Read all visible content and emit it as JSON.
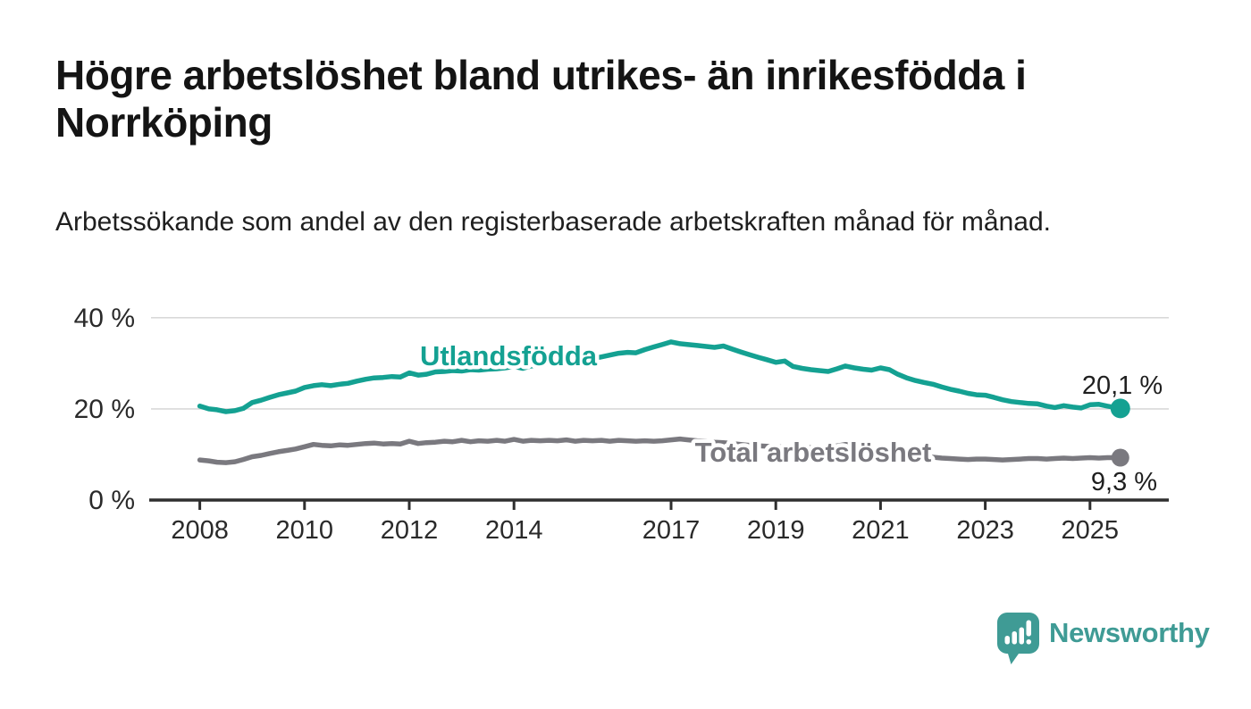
{
  "branding": {
    "logo_text": "Newsworthy",
    "logo_color": "#3f9b95"
  },
  "chart_data": {
    "type": "line",
    "title": "Högre arbetslöshet bland utrikes- än inrikesfödda i Norrköping",
    "subtitle": "Arbetssökande som andel av den registerbaserade arbetskraften månad för månad.",
    "grid": "horizontal-only",
    "legend_position": "inline-labels",
    "x_axis": {
      "range": [
        2007.1,
        2026.5
      ],
      "ticks": [
        2008,
        2010,
        2012,
        2014,
        2017,
        2019,
        2021,
        2023,
        2025
      ]
    },
    "y_axis": {
      "range": [
        0,
        41
      ],
      "ticks": [
        {
          "value": 40,
          "label": "40 %"
        },
        {
          "value": 20,
          "label": "20 %"
        },
        {
          "value": 0,
          "label": "0 %"
        }
      ]
    },
    "series": [
      {
        "id": "utlandsfodda",
        "name": "Utlandsfödda",
        "color": "#14a192",
        "end_label": "20,1 %",
        "end_value": 20.1,
        "points": [
          [
            2008.0,
            20.6
          ],
          [
            2008.17,
            20.0
          ],
          [
            2008.33,
            19.8
          ],
          [
            2008.5,
            19.4
          ],
          [
            2008.67,
            19.6
          ],
          [
            2008.83,
            20.1
          ],
          [
            2009.0,
            21.4
          ],
          [
            2009.17,
            21.9
          ],
          [
            2009.33,
            22.5
          ],
          [
            2009.5,
            23.1
          ],
          [
            2009.67,
            23.5
          ],
          [
            2009.83,
            23.9
          ],
          [
            2010.0,
            24.7
          ],
          [
            2010.17,
            25.1
          ],
          [
            2010.33,
            25.3
          ],
          [
            2010.5,
            25.1
          ],
          [
            2010.67,
            25.4
          ],
          [
            2010.83,
            25.6
          ],
          [
            2011.0,
            26.1
          ],
          [
            2011.17,
            26.5
          ],
          [
            2011.33,
            26.8
          ],
          [
            2011.5,
            26.9
          ],
          [
            2011.67,
            27.1
          ],
          [
            2011.83,
            27.0
          ],
          [
            2012.0,
            27.9
          ],
          [
            2012.17,
            27.4
          ],
          [
            2012.33,
            27.6
          ],
          [
            2012.5,
            28.1
          ],
          [
            2012.67,
            28.2
          ],
          [
            2012.83,
            28.4
          ],
          [
            2013.0,
            28.3
          ],
          [
            2013.17,
            28.6
          ],
          [
            2013.33,
            28.5
          ],
          [
            2013.5,
            28.7
          ],
          [
            2013.67,
            28.8
          ],
          [
            2013.83,
            29.0
          ],
          [
            2014.0,
            29.3
          ],
          [
            2014.17,
            28.9
          ],
          [
            2014.33,
            29.4
          ],
          [
            2014.5,
            29.7
          ],
          [
            2014.67,
            29.9
          ],
          [
            2014.83,
            30.1
          ],
          [
            2015.0,
            30.5
          ],
          [
            2015.17,
            30.2
          ],
          [
            2015.33,
            30.6
          ],
          [
            2015.5,
            31.0
          ],
          [
            2015.67,
            31.4
          ],
          [
            2015.83,
            31.8
          ],
          [
            2016.0,
            32.2
          ],
          [
            2016.17,
            32.4
          ],
          [
            2016.33,
            32.3
          ],
          [
            2016.5,
            33.0
          ],
          [
            2016.67,
            33.6
          ],
          [
            2016.83,
            34.1
          ],
          [
            2017.0,
            34.7
          ],
          [
            2017.17,
            34.3
          ],
          [
            2017.33,
            34.1
          ],
          [
            2017.5,
            33.9
          ],
          [
            2017.67,
            33.7
          ],
          [
            2017.83,
            33.5
          ],
          [
            2018.0,
            33.8
          ],
          [
            2018.17,
            33.1
          ],
          [
            2018.33,
            32.5
          ],
          [
            2018.5,
            31.9
          ],
          [
            2018.67,
            31.3
          ],
          [
            2018.83,
            30.8
          ],
          [
            2019.0,
            30.2
          ],
          [
            2019.17,
            30.5
          ],
          [
            2019.33,
            29.3
          ],
          [
            2019.5,
            28.9
          ],
          [
            2019.67,
            28.6
          ],
          [
            2019.83,
            28.4
          ],
          [
            2020.0,
            28.2
          ],
          [
            2020.17,
            28.8
          ],
          [
            2020.33,
            29.4
          ],
          [
            2020.5,
            29.0
          ],
          [
            2020.67,
            28.7
          ],
          [
            2020.83,
            28.5
          ],
          [
            2021.0,
            29.0
          ],
          [
            2021.17,
            28.6
          ],
          [
            2021.33,
            27.6
          ],
          [
            2021.5,
            26.8
          ],
          [
            2021.67,
            26.2
          ],
          [
            2021.83,
            25.8
          ],
          [
            2022.0,
            25.4
          ],
          [
            2022.17,
            24.8
          ],
          [
            2022.33,
            24.3
          ],
          [
            2022.5,
            23.9
          ],
          [
            2022.67,
            23.4
          ],
          [
            2022.83,
            23.1
          ],
          [
            2023.0,
            23.0
          ],
          [
            2023.17,
            22.5
          ],
          [
            2023.33,
            22.0
          ],
          [
            2023.5,
            21.6
          ],
          [
            2023.67,
            21.4
          ],
          [
            2023.83,
            21.2
          ],
          [
            2024.0,
            21.1
          ],
          [
            2024.17,
            20.6
          ],
          [
            2024.33,
            20.3
          ],
          [
            2024.5,
            20.7
          ],
          [
            2024.67,
            20.4
          ],
          [
            2024.83,
            20.2
          ],
          [
            2025.0,
            20.9
          ],
          [
            2025.17,
            21.0
          ],
          [
            2025.33,
            20.6
          ],
          [
            2025.58,
            20.1
          ]
        ]
      },
      {
        "id": "total",
        "name": "Total arbetslöshet",
        "color": "#7a797f",
        "end_label": "9,3 %",
        "end_value": 9.3,
        "points": [
          [
            2008.0,
            8.8
          ],
          [
            2008.17,
            8.6
          ],
          [
            2008.33,
            8.3
          ],
          [
            2008.5,
            8.2
          ],
          [
            2008.67,
            8.4
          ],
          [
            2008.83,
            8.9
          ],
          [
            2009.0,
            9.5
          ],
          [
            2009.17,
            9.8
          ],
          [
            2009.33,
            10.2
          ],
          [
            2009.5,
            10.6
          ],
          [
            2009.67,
            10.9
          ],
          [
            2009.83,
            11.2
          ],
          [
            2010.0,
            11.7
          ],
          [
            2010.17,
            12.2
          ],
          [
            2010.33,
            12.0
          ],
          [
            2010.5,
            11.9
          ],
          [
            2010.67,
            12.1
          ],
          [
            2010.83,
            12.0
          ],
          [
            2011.0,
            12.2
          ],
          [
            2011.17,
            12.4
          ],
          [
            2011.33,
            12.5
          ],
          [
            2011.5,
            12.3
          ],
          [
            2011.67,
            12.4
          ],
          [
            2011.83,
            12.3
          ],
          [
            2012.0,
            12.9
          ],
          [
            2012.17,
            12.4
          ],
          [
            2012.33,
            12.6
          ],
          [
            2012.5,
            12.7
          ],
          [
            2012.67,
            12.9
          ],
          [
            2012.83,
            12.8
          ],
          [
            2013.0,
            13.1
          ],
          [
            2013.17,
            12.8
          ],
          [
            2013.33,
            13.0
          ],
          [
            2013.5,
            12.9
          ],
          [
            2013.67,
            13.1
          ],
          [
            2013.83,
            12.9
          ],
          [
            2014.0,
            13.3
          ],
          [
            2014.17,
            12.9
          ],
          [
            2014.33,
            13.1
          ],
          [
            2014.5,
            13.0
          ],
          [
            2014.67,
            13.1
          ],
          [
            2014.83,
            13.0
          ],
          [
            2015.0,
            13.2
          ],
          [
            2015.17,
            12.9
          ],
          [
            2015.33,
            13.1
          ],
          [
            2015.5,
            13.0
          ],
          [
            2015.67,
            13.1
          ],
          [
            2015.83,
            12.9
          ],
          [
            2016.0,
            13.1
          ],
          [
            2016.17,
            13.0
          ],
          [
            2016.33,
            12.9
          ],
          [
            2016.5,
            13.0
          ],
          [
            2016.67,
            12.9
          ],
          [
            2016.83,
            13.0
          ],
          [
            2017.0,
            13.2
          ],
          [
            2017.17,
            13.4
          ],
          [
            2017.33,
            13.2
          ],
          [
            2017.5,
            13.0
          ],
          [
            2017.67,
            12.9
          ],
          [
            2017.83,
            12.7
          ],
          [
            2018.0,
            12.6
          ],
          [
            2018.17,
            12.4
          ],
          [
            2018.33,
            12.2
          ],
          [
            2018.5,
            12.0
          ],
          [
            2018.67,
            11.9
          ],
          [
            2018.83,
            11.8
          ],
          [
            2019.0,
            11.7
          ],
          [
            2019.17,
            11.6
          ],
          [
            2019.33,
            11.4
          ],
          [
            2019.5,
            11.4
          ],
          [
            2019.67,
            11.5
          ],
          [
            2019.83,
            11.4
          ],
          [
            2020.0,
            11.5
          ],
          [
            2020.17,
            11.9
          ],
          [
            2020.33,
            12.2
          ],
          [
            2020.5,
            12.0
          ],
          [
            2020.67,
            11.7
          ],
          [
            2020.83,
            11.4
          ],
          [
            2021.0,
            11.1
          ],
          [
            2021.17,
            10.7
          ],
          [
            2021.33,
            10.4
          ],
          [
            2021.5,
            10.1
          ],
          [
            2021.67,
            9.8
          ],
          [
            2021.83,
            9.6
          ],
          [
            2022.0,
            9.4
          ],
          [
            2022.17,
            9.2
          ],
          [
            2022.33,
            9.1
          ],
          [
            2022.5,
            9.0
          ],
          [
            2022.67,
            8.9
          ],
          [
            2022.83,
            9.0
          ],
          [
            2023.0,
            9.0
          ],
          [
            2023.17,
            8.9
          ],
          [
            2023.33,
            8.8
          ],
          [
            2023.5,
            8.9
          ],
          [
            2023.67,
            9.0
          ],
          [
            2023.83,
            9.1
          ],
          [
            2024.0,
            9.1
          ],
          [
            2024.17,
            9.0
          ],
          [
            2024.33,
            9.1
          ],
          [
            2024.5,
            9.2
          ],
          [
            2024.67,
            9.1
          ],
          [
            2024.83,
            9.2
          ],
          [
            2025.0,
            9.3
          ],
          [
            2025.17,
            9.2
          ],
          [
            2025.33,
            9.3
          ],
          [
            2025.58,
            9.3
          ]
        ]
      }
    ],
    "colors": {
      "axis": "#2f2f2f",
      "gridline": "#d9d9d9",
      "tick_text": "#2a2a2a",
      "end_label_text": "#1f1f1f"
    }
  }
}
